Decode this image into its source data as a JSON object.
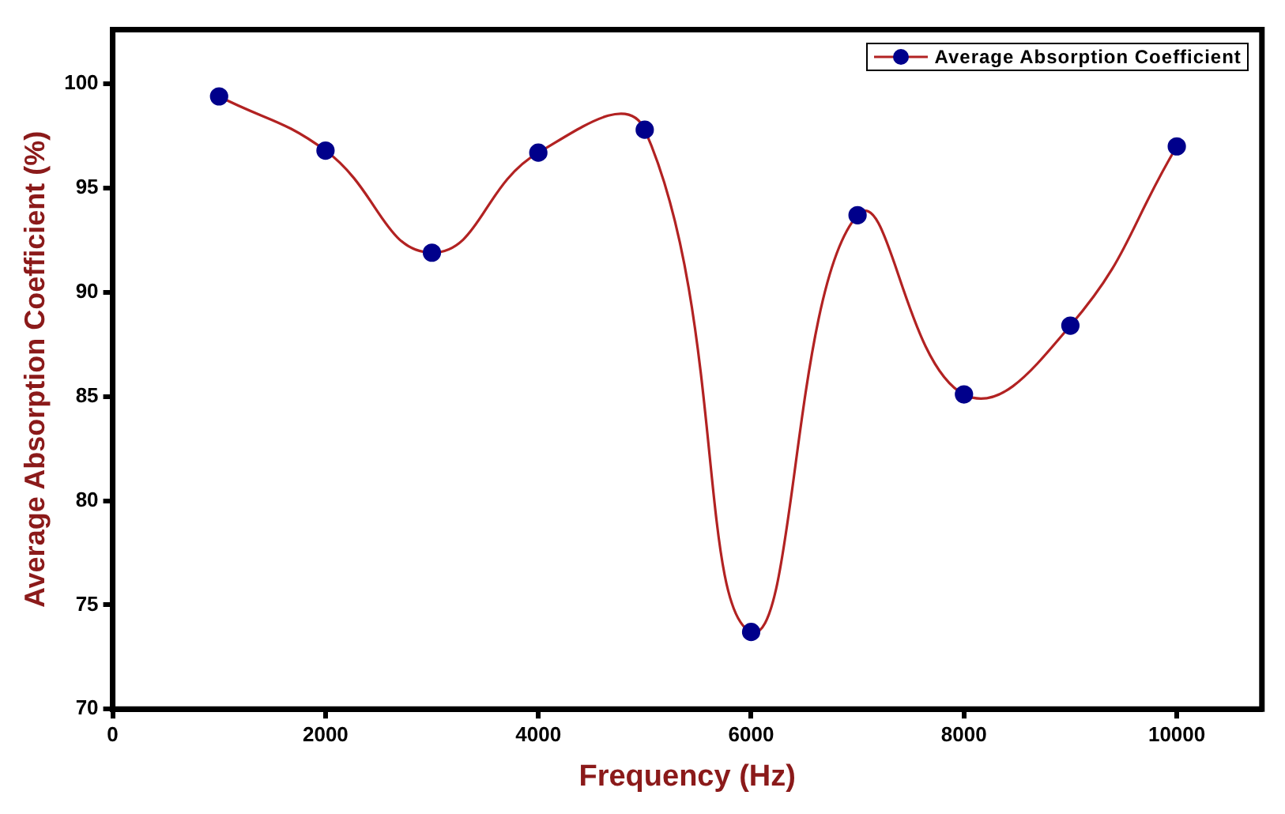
{
  "chart_data": {
    "type": "line",
    "xlabel": "Frequency (Hz)",
    "ylabel": "Average Absorption Coefficient (%)",
    "x": [
      1000,
      2000,
      3000,
      4000,
      5000,
      6000,
      7000,
      8000,
      9000,
      10000
    ],
    "series": [
      {
        "name": "Average Absorption Coefficient",
        "color": "#b22222",
        "values": [
          99.4,
          96.8,
          91.9,
          96.7,
          97.8,
          73.7,
          93.7,
          85.1,
          88.4,
          97.0
        ]
      }
    ],
    "xlim": [
      0,
      10800
    ],
    "xticks": [
      0,
      2000,
      4000,
      6000,
      8000,
      10000
    ],
    "ylim": [
      70,
      102.6
    ],
    "yticks": [
      70,
      75,
      80,
      85,
      90,
      95,
      100
    ],
    "grid": false,
    "legend": "top right",
    "marker": "circle",
    "line_style": "solid"
  }
}
